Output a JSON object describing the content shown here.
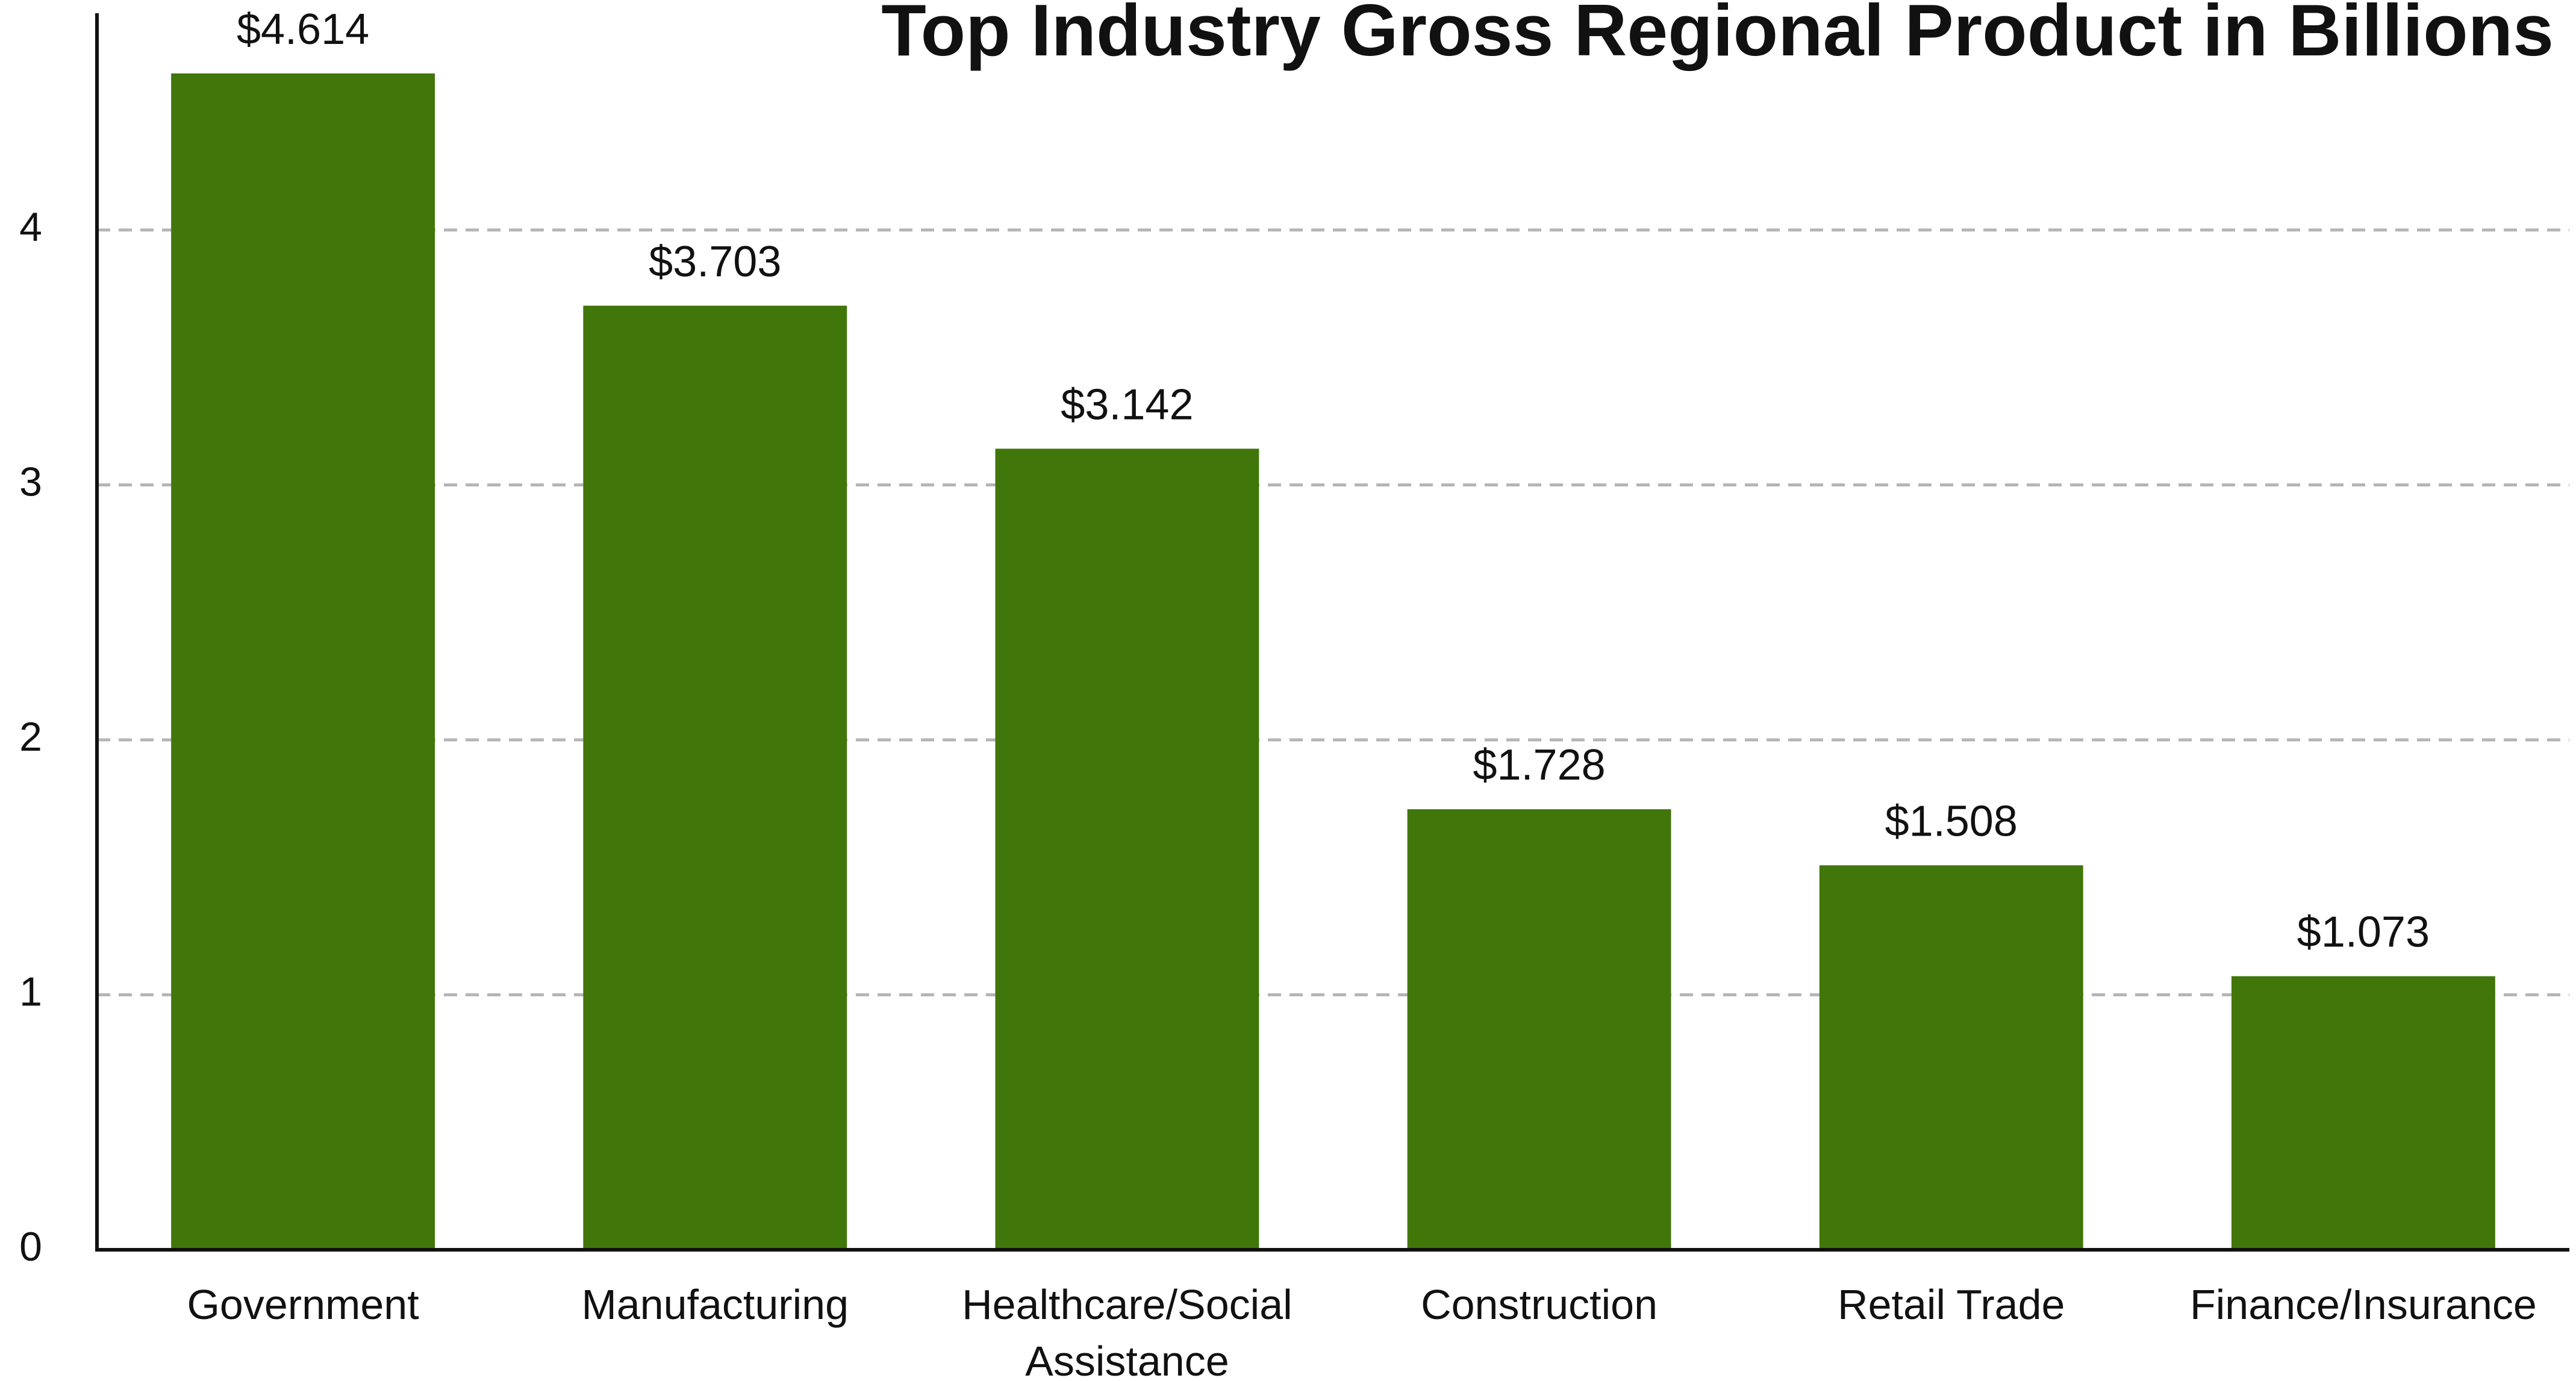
{
  "chart_data": {
    "type": "bar",
    "title": "Top Industry Gross Regional Product in Billions",
    "categories": [
      "Government",
      "Manufacturing",
      "Healthcare/Social Assistance",
      "Construction",
      "Retail Trade",
      "Finance/Insurance"
    ],
    "values": [
      4.614,
      3.703,
      3.142,
      1.728,
      1.508,
      1.073
    ],
    "value_labels": [
      "$4.614",
      "$3.703",
      "$3.142",
      "$1.728",
      "$1.508",
      "$1.073"
    ],
    "color": "#41760a",
    "ylim": [
      0,
      4.85
    ],
    "yticks": [
      0,
      1,
      2,
      3,
      4
    ],
    "grid": true
  }
}
